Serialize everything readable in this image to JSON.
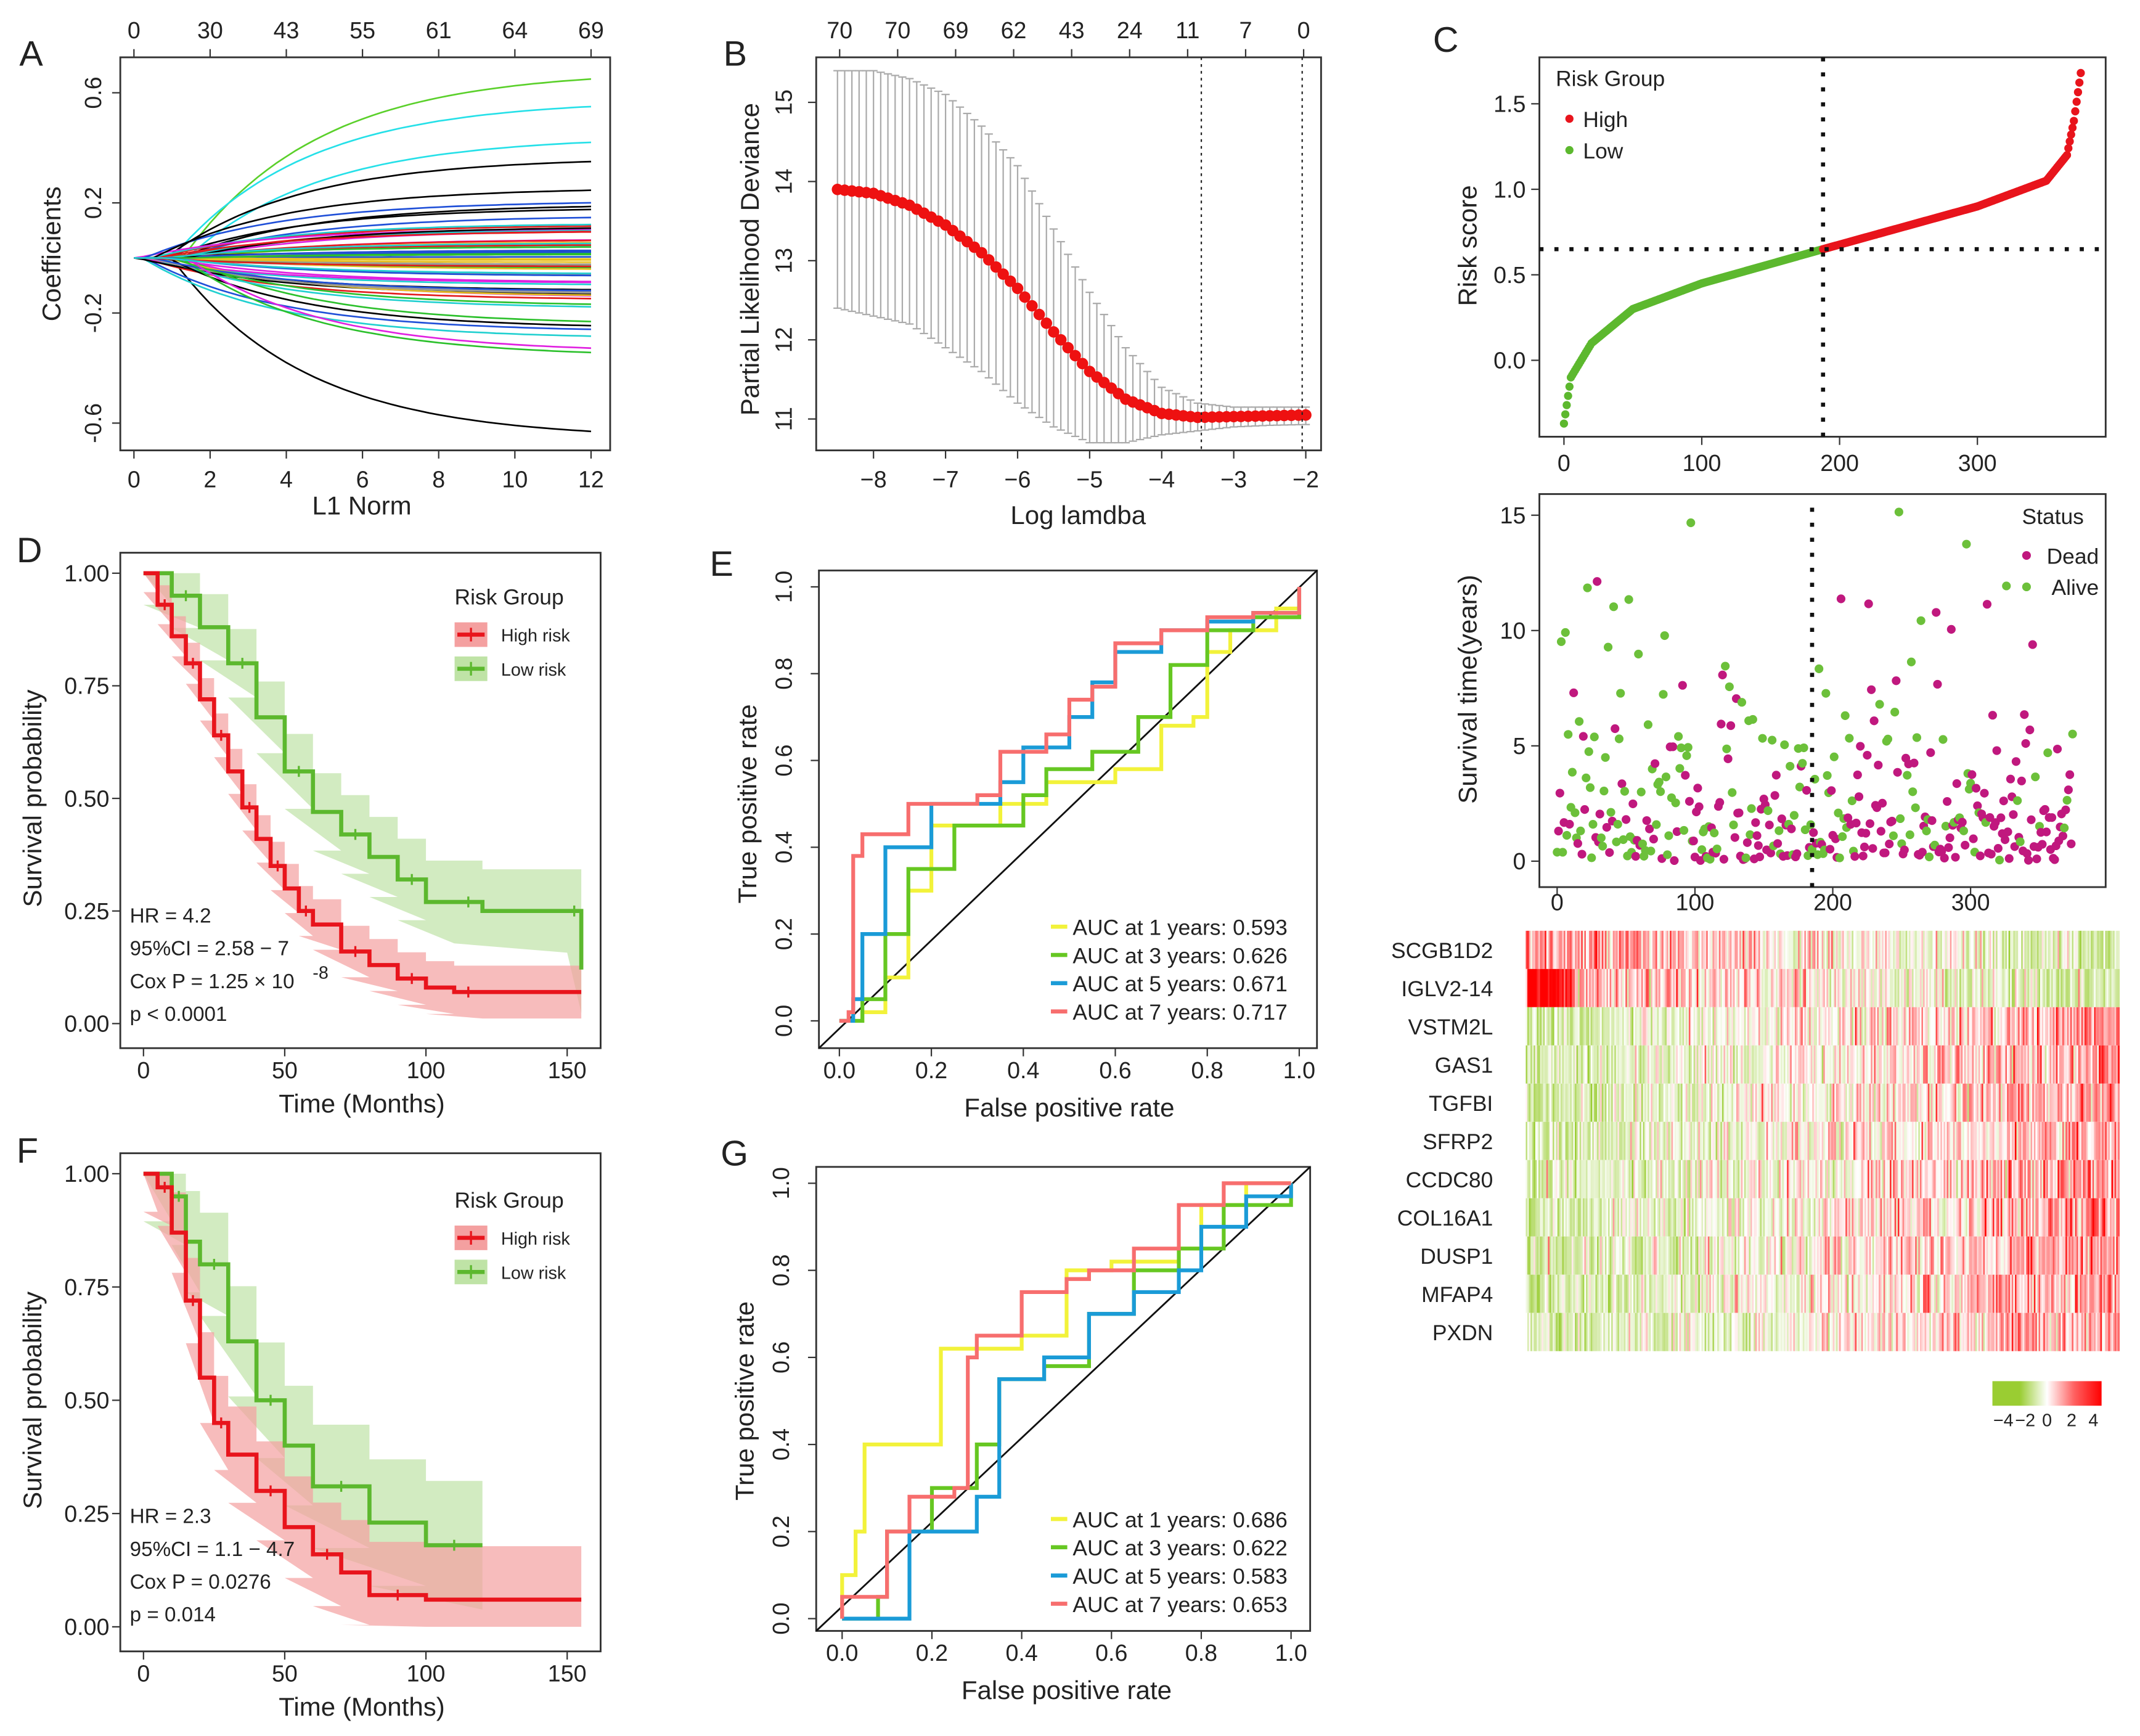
{
  "colors": {
    "high": "#e8141c",
    "low": "#5cb82e",
    "dead": "#c0187e",
    "alive": "#6cc03a",
    "roc": [
      "#f2f23a",
      "#66c722",
      "#1a9bd7",
      "#f76e6e"
    ],
    "heat_low": "#9acd32",
    "heat_mid": "#ffffff",
    "heat_high": "#ff0000"
  },
  "panel_labels": {
    "A": "A",
    "B": "B",
    "C": "C",
    "D": "D",
    "E": "E",
    "F": "F",
    "G": "G"
  },
  "chart_data": [
    {
      "id": "A",
      "type": "line",
      "xlabel": "L1 Norm",
      "ylabel": "Coefficients",
      "xlim": [
        0,
        12
      ],
      "ylim": [
        -0.6,
        0.6
      ],
      "xticks": [
        "0",
        "2",
        "4",
        "6",
        "8",
        "10",
        "12"
      ],
      "yticks": [
        "-0.6",
        "-0.2",
        "0.2",
        "0.6"
      ],
      "top_ticks": [
        "0",
        "30",
        "43",
        "55",
        "61",
        "64",
        "69"
      ],
      "n_series": 69,
      "notable_final_coefficients": [
        0.65,
        0.55,
        0.42,
        0.35,
        -0.63
      ]
    },
    {
      "id": "B",
      "type": "scatter",
      "xlabel": "Log lamdba",
      "ylabel": "Partial Likelihood Deviance",
      "xlim": [
        -8.5,
        -2
      ],
      "ylim": [
        11,
        15
      ],
      "xticks": [
        "−8",
        "−7",
        "−6",
        "−5",
        "−4",
        "−3",
        "−2"
      ],
      "yticks": [
        "11",
        "12",
        "13",
        "14",
        "15"
      ],
      "top_ticks": [
        "70",
        "70",
        "69",
        "62",
        "43",
        "24",
        "11",
        "7",
        "0"
      ],
      "log_lambda": [
        -8.5,
        -8,
        -7.5,
        -7,
        -6.5,
        -6,
        -5.5,
        -5,
        -4.5,
        -4,
        -3.5,
        -3,
        -2.5,
        -2
      ],
      "deviance": [
        13.9,
        13.85,
        13.7,
        13.45,
        13.1,
        12.65,
        12.1,
        11.6,
        11.25,
        11.07,
        11.02,
        11.03,
        11.04,
        11.05
      ],
      "upper": [
        15.4,
        15.4,
        15.3,
        15.1,
        14.7,
        14.2,
        13.4,
        12.6,
        11.9,
        11.4,
        11.2,
        11.15,
        11.15,
        11.15
      ],
      "lower": [
        12.4,
        12.3,
        12.2,
        11.9,
        11.6,
        11.2,
        10.9,
        10.7,
        10.7,
        10.8,
        10.85,
        10.9,
        10.92,
        10.93
      ],
      "vlines": [
        -3.45,
        -2.05
      ]
    },
    {
      "id": "C-risk",
      "type": "scatter",
      "ylabel": "Risk score",
      "xlim": [
        0,
        375
      ],
      "ylim": [
        -0.4,
        1.7
      ],
      "xticks": [
        "0",
        "100",
        "200",
        "300"
      ],
      "yticks": [
        "0.0",
        "0.5",
        "1.0",
        "1.5"
      ],
      "legend_title": "Risk Group",
      "legend": [
        "High",
        "Low"
      ],
      "cutoff_score": 0.65,
      "cutoff_index": 188,
      "profile_index": [
        0,
        5,
        20,
        50,
        100,
        188,
        300,
        350,
        365,
        370,
        375
      ],
      "profile_score": [
        -0.37,
        -0.1,
        0.1,
        0.3,
        0.45,
        0.65,
        0.9,
        1.05,
        1.2,
        1.4,
        1.68
      ]
    },
    {
      "id": "C-status",
      "type": "scatter",
      "ylabel": "Survival time(years)",
      "xlim": [
        0,
        375
      ],
      "ylim": [
        0,
        15
      ],
      "xticks": [
        "0",
        "100",
        "200",
        "300"
      ],
      "yticks": [
        "0",
        "5",
        "10",
        "15"
      ],
      "legend_title": "Status",
      "legend": [
        "Dead",
        "Alive"
      ],
      "cutoff_index": 185
    },
    {
      "id": "C-heatmap",
      "type": "heatmap",
      "genes": [
        "SCGB1D2",
        "IGLV2-14",
        "VSTM2L",
        "GAS1",
        "TGFBI",
        "SFRP2",
        "CCDC80",
        "COL16A1",
        "DUSP1",
        "MFAP4",
        "PXDN"
      ],
      "colorbar_ticks": [
        "−4",
        "−2",
        "0",
        "2",
        "4"
      ],
      "range": [
        -4,
        4
      ]
    },
    {
      "id": "D",
      "type": "line",
      "xlabel": "Time (Months)",
      "ylabel": "Survival probability",
      "xlim": [
        0,
        155
      ],
      "ylim": [
        0,
        1
      ],
      "xticks": [
        "0",
        "50",
        "100",
        "150"
      ],
      "yticks": [
        "0.00",
        "0.25",
        "0.50",
        "0.75",
        "1.00"
      ],
      "legend_title": "Risk Group",
      "legend": [
        "High risk",
        "Low risk"
      ],
      "stats": {
        "hr": "HR =  4.2",
        "ci": "95%CI =  2.58 − 7",
        "cox": "Cox P =  1.25 × 10",
        "cox_exp": "-8",
        "p": "p < 0.0001"
      },
      "series": [
        {
          "name": "High risk",
          "t": [
            0,
            5,
            10,
            15,
            20,
            25,
            30,
            35,
            40,
            45,
            50,
            55,
            60,
            70,
            80,
            90,
            100,
            110,
            120,
            155
          ],
          "s": [
            1,
            0.93,
            0.86,
            0.8,
            0.72,
            0.64,
            0.56,
            0.48,
            0.41,
            0.35,
            0.3,
            0.25,
            0.22,
            0.16,
            0.13,
            0.1,
            0.08,
            0.07,
            0.07,
            0.07
          ],
          "ci": 0.06
        },
        {
          "name": "Low risk",
          "t": [
            0,
            10,
            20,
            30,
            40,
            50,
            60,
            70,
            80,
            90,
            100,
            110,
            120,
            150,
            155
          ],
          "s": [
            1,
            0.95,
            0.88,
            0.8,
            0.68,
            0.56,
            0.47,
            0.42,
            0.37,
            0.32,
            0.27,
            0.27,
            0.25,
            0.25,
            0.12
          ],
          "ci": 0.1
        }
      ]
    },
    {
      "id": "E",
      "type": "line",
      "xlabel": "False positive rate",
      "ylabel": "True positive rate",
      "xlim": [
        0,
        1
      ],
      "ylim": [
        0,
        1
      ],
      "xticks": [
        "0.0",
        "0.2",
        "0.4",
        "0.6",
        "0.8",
        "1.0"
      ],
      "yticks": [
        "0.0",
        "0.2",
        "0.4",
        "0.6",
        "0.8",
        "1.0"
      ],
      "legend": [
        "AUC at 1 years: 0.593",
        "AUC at 3 years: 0.626",
        "AUC at 5 years: 0.671",
        "AUC at 7 years: 0.717"
      ],
      "series": [
        {
          "name": "AUC at 1 years: 0.593",
          "pts": [
            [
              0,
              0
            ],
            [
              0.05,
              0.02
            ],
            [
              0.1,
              0.1
            ],
            [
              0.15,
              0.3
            ],
            [
              0.2,
              0.45
            ],
            [
              0.35,
              0.5
            ],
            [
              0.45,
              0.55
            ],
            [
              0.6,
              0.58
            ],
            [
              0.7,
              0.68
            ],
            [
              0.77,
              0.7
            ],
            [
              0.8,
              0.85
            ],
            [
              0.85,
              0.9
            ],
            [
              0.95,
              0.95
            ],
            [
              1,
              1
            ]
          ]
        },
        {
          "name": "AUC at 3 years: 0.626",
          "pts": [
            [
              0,
              0
            ],
            [
              0.05,
              0.05
            ],
            [
              0.1,
              0.2
            ],
            [
              0.15,
              0.35
            ],
            [
              0.25,
              0.45
            ],
            [
              0.4,
              0.52
            ],
            [
              0.45,
              0.58
            ],
            [
              0.55,
              0.62
            ],
            [
              0.65,
              0.7
            ],
            [
              0.72,
              0.82
            ],
            [
              0.8,
              0.9
            ],
            [
              0.9,
              0.93
            ],
            [
              1,
              1
            ]
          ]
        },
        {
          "name": "AUC at 5 years: 0.671",
          "pts": [
            [
              0,
              0
            ],
            [
              0.03,
              0.05
            ],
            [
              0.05,
              0.2
            ],
            [
              0.1,
              0.4
            ],
            [
              0.2,
              0.5
            ],
            [
              0.35,
              0.55
            ],
            [
              0.4,
              0.63
            ],
            [
              0.5,
              0.7
            ],
            [
              0.55,
              0.78
            ],
            [
              0.6,
              0.85
            ],
            [
              0.7,
              0.9
            ],
            [
              0.8,
              0.92
            ],
            [
              0.9,
              0.94
            ],
            [
              1,
              1
            ]
          ]
        },
        {
          "name": "AUC at 7 years: 0.717",
          "pts": [
            [
              0,
              0
            ],
            [
              0.02,
              0.02
            ],
            [
              0.03,
              0.38
            ],
            [
              0.05,
              0.43
            ],
            [
              0.1,
              0.43
            ],
            [
              0.15,
              0.5
            ],
            [
              0.3,
              0.52
            ],
            [
              0.35,
              0.62
            ],
            [
              0.45,
              0.66
            ],
            [
              0.5,
              0.74
            ],
            [
              0.55,
              0.77
            ],
            [
              0.6,
              0.87
            ],
            [
              0.7,
              0.9
            ],
            [
              0.8,
              0.93
            ],
            [
              0.9,
              0.94
            ],
            [
              1,
              1
            ]
          ]
        }
      ]
    },
    {
      "id": "F",
      "type": "line",
      "xlabel": "Time (Months)",
      "ylabel": "Survival probability",
      "xlim": [
        0,
        155
      ],
      "ylim": [
        0,
        1
      ],
      "xticks": [
        "0",
        "50",
        "100",
        "150"
      ],
      "yticks": [
        "0.00",
        "0.25",
        "0.50",
        "0.75",
        "1.00"
      ],
      "legend_title": "Risk Group",
      "legend": [
        "High risk",
        "Low risk"
      ],
      "stats": {
        "hr": "HR =  2.3",
        "ci": "95%CI =  1.1 − 4.7",
        "cox": "Cox P =  0.0276",
        "p": "p = 0.014"
      },
      "series": [
        {
          "name": "High risk",
          "t": [
            0,
            5,
            10,
            15,
            20,
            25,
            30,
            40,
            50,
            60,
            70,
            80,
            100,
            155
          ],
          "s": [
            1,
            0.97,
            0.87,
            0.72,
            0.55,
            0.45,
            0.38,
            0.3,
            0.22,
            0.16,
            0.12,
            0.07,
            0.06,
            0.06
          ],
          "ci": 0.12
        },
        {
          "name": "Low risk",
          "t": [
            0,
            10,
            15,
            20,
            30,
            40,
            50,
            60,
            80,
            100,
            120
          ],
          "s": [
            1,
            0.95,
            0.85,
            0.8,
            0.63,
            0.5,
            0.4,
            0.31,
            0.23,
            0.18,
            0.18
          ],
          "ci": 0.15
        }
      ]
    },
    {
      "id": "G",
      "type": "line",
      "xlabel": "False positive rate",
      "ylabel": "True positive rate",
      "xlim": [
        0,
        1
      ],
      "ylim": [
        0,
        1
      ],
      "xticks": [
        "0.0",
        "0.2",
        "0.4",
        "0.6",
        "0.8",
        "1.0"
      ],
      "yticks": [
        "0.0",
        "0.2",
        "0.4",
        "0.6",
        "0.8",
        "1.0"
      ],
      "legend": [
        "AUC at 1 years: 0.686",
        "AUC at 3 years: 0.622",
        "AUC at 5 years: 0.583",
        "AUC at 7 years: 0.653"
      ],
      "series": [
        {
          "name": "AUC at 1 years: 0.686",
          "pts": [
            [
              0,
              0
            ],
            [
              0,
              0.1
            ],
            [
              0.03,
              0.2
            ],
            [
              0.05,
              0.4
            ],
            [
              0.15,
              0.4
            ],
            [
              0.22,
              0.62
            ],
            [
              0.3,
              0.62
            ],
            [
              0.4,
              0.65
            ],
            [
              0.5,
              0.8
            ],
            [
              0.6,
              0.82
            ],
            [
              0.75,
              0.85
            ],
            [
              0.8,
              0.95
            ],
            [
              0.9,
              1
            ],
            [
              1,
              1
            ]
          ]
        },
        {
          "name": "AUC at 3 years: 0.622",
          "pts": [
            [
              0,
              0
            ],
            [
              0.08,
              0.05
            ],
            [
              0.1,
              0.2
            ],
            [
              0.2,
              0.3
            ],
            [
              0.3,
              0.4
            ],
            [
              0.35,
              0.55
            ],
            [
              0.45,
              0.58
            ],
            [
              0.55,
              0.7
            ],
            [
              0.65,
              0.8
            ],
            [
              0.75,
              0.85
            ],
            [
              0.85,
              0.95
            ],
            [
              1,
              1
            ]
          ]
        },
        {
          "name": "AUC at 5 years: 0.583",
          "pts": [
            [
              0,
              0
            ],
            [
              0.15,
              0.02
            ],
            [
              0.15,
              0.2
            ],
            [
              0.3,
              0.28
            ],
            [
              0.35,
              0.55
            ],
            [
              0.45,
              0.6
            ],
            [
              0.55,
              0.7
            ],
            [
              0.65,
              0.75
            ],
            [
              0.75,
              0.8
            ],
            [
              0.8,
              0.9
            ],
            [
              0.9,
              0.97
            ],
            [
              1,
              1
            ]
          ]
        },
        {
          "name": "AUC at 7 years: 0.653",
          "pts": [
            [
              0,
              0
            ],
            [
              0,
              0.05
            ],
            [
              0.05,
              0.05
            ],
            [
              0.1,
              0.2
            ],
            [
              0.15,
              0.28
            ],
            [
              0.25,
              0.3
            ],
            [
              0.28,
              0.6
            ],
            [
              0.3,
              0.65
            ],
            [
              0.4,
              0.75
            ],
            [
              0.5,
              0.78
            ],
            [
              0.55,
              0.8
            ],
            [
              0.65,
              0.85
            ],
            [
              0.75,
              0.95
            ],
            [
              0.85,
              1
            ],
            [
              1,
              1
            ]
          ]
        }
      ]
    }
  ]
}
